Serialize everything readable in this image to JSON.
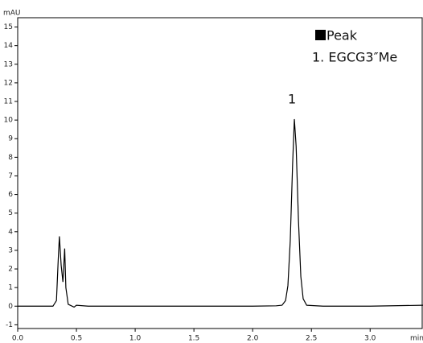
{
  "chart_data": {
    "type": "line",
    "y_label": "mAU",
    "x_label": "min",
    "xlim": [
      0,
      3.45
    ],
    "ylim": [
      -1.2,
      15.5
    ],
    "xticks": [
      {
        "value": 0,
        "label": "0.0"
      },
      0.5,
      {
        "value": 1,
        "label": "1.0"
      },
      1.5,
      {
        "value": 2,
        "label": "2.0"
      },
      2.5,
      {
        "value": 3,
        "label": "3.0"
      }
    ],
    "yticks": [
      -1,
      0,
      1,
      2,
      3,
      4,
      5,
      6,
      7,
      8,
      9,
      10,
      11,
      12,
      13,
      14,
      15
    ],
    "legend": {
      "title": "Peak",
      "entries": [
        "1. EGCG3″Me"
      ]
    },
    "annotations": [
      "1"
    ],
    "series": [
      {
        "color": "#000000",
        "x": [
          0,
          0.1,
          0.2,
          0.28,
          0.3,
          0.33,
          0.345,
          0.355,
          0.37,
          0.385,
          0.4,
          0.41,
          0.43,
          0.48,
          0.5,
          0.6,
          1.0,
          1.5,
          2.0,
          2.2,
          2.25,
          2.28,
          2.3,
          2.32,
          2.34,
          2.355,
          2.37,
          2.39,
          2.41,
          2.43,
          2.46,
          2.6,
          3.0,
          3.45
        ],
        "values": [
          0,
          0,
          0,
          0,
          0,
          0.3,
          2.5,
          3.75,
          2.2,
          1.3,
          3.1,
          1.0,
          0.1,
          -0.05,
          0.05,
          0,
          0,
          0,
          0,
          0.02,
          0.05,
          0.3,
          1.1,
          3.5,
          7.6,
          10.05,
          8.6,
          4.6,
          1.6,
          0.4,
          0.05,
          0,
          0,
          0.05
        ]
      }
    ]
  }
}
